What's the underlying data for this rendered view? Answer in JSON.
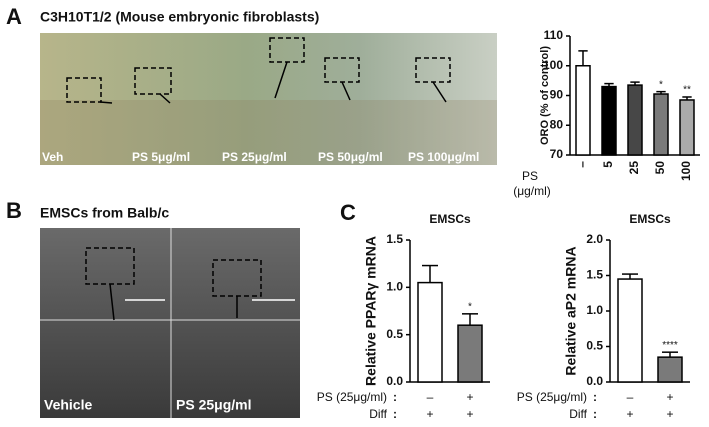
{
  "panels": [
    {
      "letter": "A",
      "title": "C3H10T1/2 (Mouse embryonic fibroblasts)",
      "image_labels": [
        "Veh",
        "PS 5μg/ml",
        "PS 25μg/ml",
        "PS 50μg/ml",
        "PS 100μg/ml"
      ]
    },
    {
      "letter": "B",
      "title": "EMSCs from Balb/c",
      "image_labels": [
        "Vehicle",
        "PS 25μg/ml"
      ]
    },
    {
      "letter": "C"
    }
  ],
  "chart_data": [
    {
      "type": "bar",
      "ylabel": "ORO (% of control)",
      "xlabel": "PS",
      "xlabel_unit": "(μg/ml)",
      "categories": [
        "–",
        "5",
        "25",
        "50",
        "100"
      ],
      "values": [
        100,
        93,
        93.5,
        90.5,
        88.5
      ],
      "errors": [
        5,
        1,
        1,
        0.8,
        1
      ],
      "colors": [
        "#ffffff",
        "#000000",
        "#474747",
        "#7a7a7a",
        "#ababab"
      ],
      "annotations": [
        null,
        null,
        null,
        "*",
        "**"
      ],
      "ylim": [
        70,
        110
      ],
      "yticks": [
        70,
        80,
        90,
        100,
        110
      ]
    },
    {
      "type": "bar",
      "title": "EMSCs",
      "ylabel": "Relative PPARγ mRNA",
      "categories": [
        null,
        null
      ],
      "values": [
        1.05,
        0.6
      ],
      "errors": [
        0.18,
        0.12
      ],
      "colors": [
        "#ffffff",
        "#7a7a7a"
      ],
      "annotations": [
        null,
        "*"
      ],
      "ylim": [
        0,
        1.5
      ],
      "yticks": [
        {
          "value": 0,
          "label": "0.0"
        },
        {
          "value": 0.5,
          "label": "0.5"
        },
        {
          "value": 1,
          "label": "1.0"
        },
        {
          "value": 1.5,
          "label": "1.5"
        }
      ],
      "separator": ":",
      "treatments": [
        {
          "label": "PS (25μg/ml)",
          "marks": [
            "–",
            "+"
          ]
        },
        {
          "label": "Diff",
          "marks": [
            "+",
            "+"
          ]
        }
      ]
    },
    {
      "type": "bar",
      "title": "EMSCs",
      "ylabel": "Relative aP2 mRNA",
      "categories": [
        null,
        null
      ],
      "values": [
        1.45,
        0.35
      ],
      "errors": [
        0.07,
        0.07
      ],
      "colors": [
        "#ffffff",
        "#7a7a7a"
      ],
      "annotations": [
        null,
        "****"
      ],
      "ylim": [
        0,
        2
      ],
      "yticks": [
        {
          "value": 0,
          "label": "0.0"
        },
        {
          "value": 0.5,
          "label": "0.5"
        },
        {
          "value": 1,
          "label": "1.0"
        },
        {
          "value": 1.5,
          "label": "1.5"
        },
        {
          "value": 2,
          "label": "2.0"
        }
      ],
      "separator": ":",
      "treatments": [
        {
          "label": "PS (25μg/ml)",
          "marks": [
            "–",
            "+"
          ]
        },
        {
          "label": "Diff",
          "marks": [
            "+",
            "+"
          ]
        }
      ]
    }
  ]
}
